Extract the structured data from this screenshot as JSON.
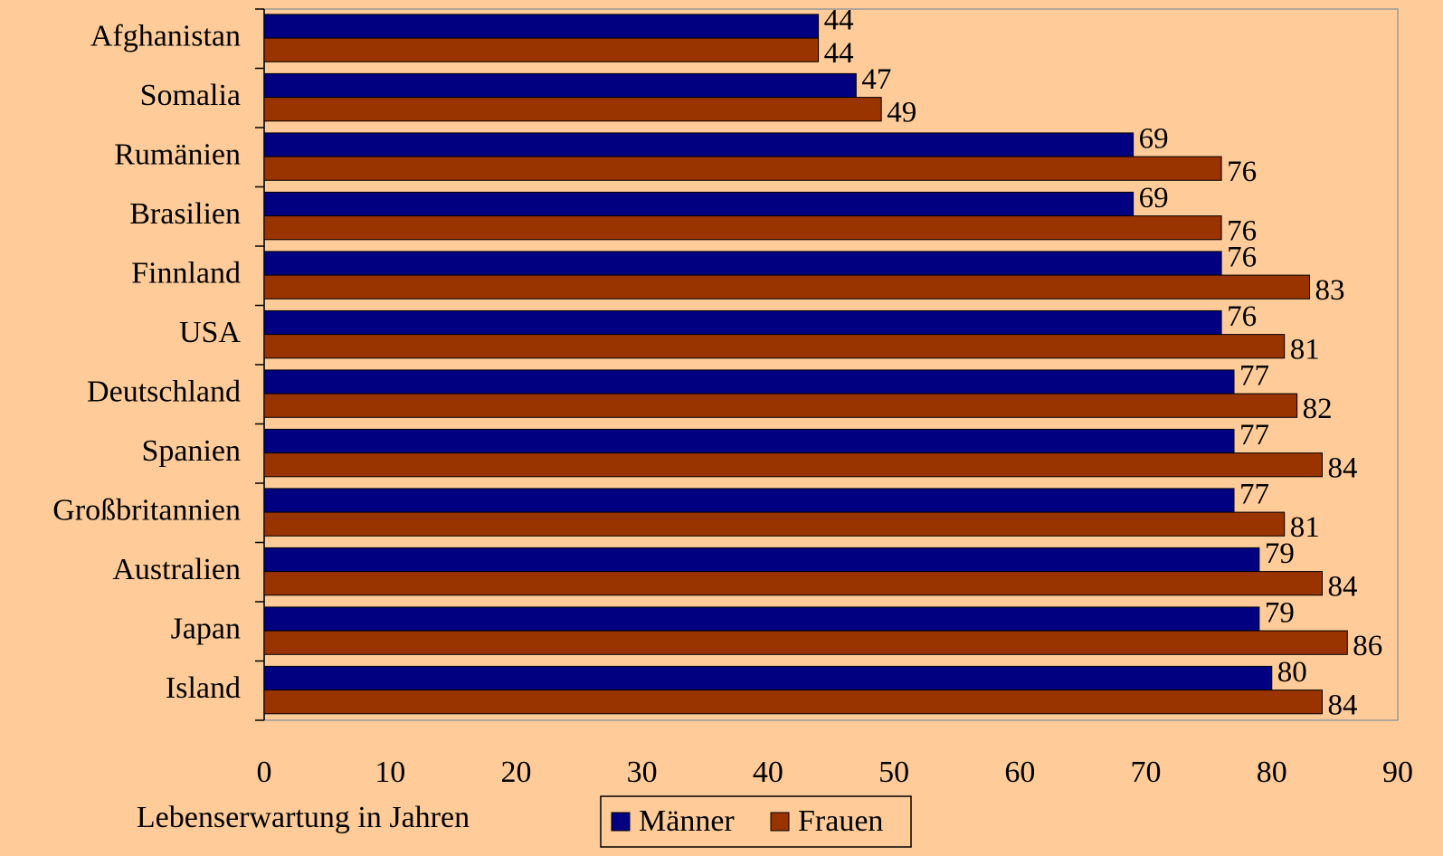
{
  "chart_data": {
    "type": "bar",
    "orientation": "horizontal",
    "x_label": "Lebenserwartung in Jahren",
    "categories": [
      "Afghanistan",
      "Somalia",
      "Rumänien",
      "Brasilien",
      "Finnland",
      "USA",
      "Deutschland",
      "Spanien",
      "Großbritannien",
      "Australien",
      "Japan",
      "Island"
    ],
    "series": [
      {
        "name": "Männer",
        "color": "#000080",
        "values": [
          44,
          47,
          69,
          69,
          76,
          76,
          77,
          77,
          77,
          79,
          79,
          80
        ]
      },
      {
        "name": "Frauen",
        "color": "#993300",
        "values": [
          44,
          49,
          76,
          76,
          83,
          81,
          82,
          84,
          81,
          84,
          86,
          84
        ]
      }
    ],
    "xlim": [
      0,
      90
    ],
    "xticks": [
      0,
      10,
      20,
      30,
      40,
      50,
      60,
      70,
      80,
      90
    ],
    "legend": "bottom"
  }
}
